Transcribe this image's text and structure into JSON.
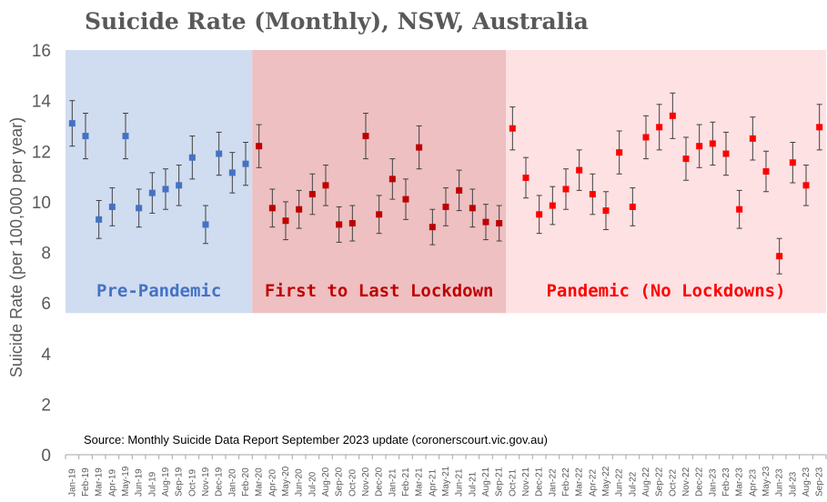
{
  "chart_data": {
    "type": "scatter",
    "title": "Suicide Rate (Monthly), NSW, Australia",
    "ylabel": "Suicide Rate (per 100,000 per year)",
    "xlabel": "",
    "ylim": [
      0,
      16
    ],
    "yticks": [
      "0",
      "2",
      "4",
      "6",
      "8",
      "10",
      "12",
      "14",
      "16"
    ],
    "grid": false,
    "source": "Source: Monthly Suicide Data Report September 2023 update  (coronerscourt.vic.gov.au)",
    "categories": [
      "Jan-19",
      "Feb-19",
      "Mar-19",
      "Apr-19",
      "May-19",
      "Jun-19",
      "Jul-19",
      "Aug-19",
      "Sep-19",
      "Oct-19",
      "Nov-19",
      "Dec-19",
      "Jan-20",
      "Feb-20",
      "Mar-20",
      "Apr-20",
      "May-20",
      "Jun-20",
      "Jul-20",
      "Aug-20",
      "Sep-20",
      "Oct-20",
      "Nov-20",
      "Dec-20",
      "Jan-21",
      "Feb-21",
      "Mar-21",
      "Apr-21",
      "May-21",
      "Jun-21",
      "Jul-21",
      "Aug-21",
      "Sep-21",
      "Oct-21",
      "Nov-21",
      "Dec-21",
      "Jan-22",
      "Feb-22",
      "Mar-22",
      "Apr-22",
      "May-22",
      "Jun-22",
      "Jul-22",
      "Aug-22",
      "Sep-22",
      "Oct-22",
      "Nov-22",
      "Dec-22",
      "Jan-23",
      "Feb-23",
      "Mar-23",
      "Apr-23",
      "May-23",
      "Jun-23",
      "Jul-23",
      "Aug-23",
      "Sep-23"
    ],
    "regions": [
      {
        "label": "Pre-Pandemic",
        "start": "Jan-19",
        "end": "Feb-20",
        "color": "#4472c4",
        "bg": "#d0dcf0"
      },
      {
        "label": "First to Last Lockdown",
        "start": "Mar-20",
        "end": "Sep-21",
        "color": "#c00000",
        "bg": "#eec0c2"
      },
      {
        "label": "Pandemic (No Lockdowns)",
        "start": "Oct-21",
        "end": "Sep-23",
        "color": "#ff0000",
        "bg": "#fde1e3"
      }
    ],
    "series": [
      {
        "color": "#4472c4",
        "values": [
          13.1,
          12.6,
          9.3,
          9.8,
          12.6,
          9.75,
          10.35,
          10.5,
          10.65,
          11.75,
          9.1,
          11.9,
          11.15,
          11.5
        ],
        "err": [
          0.9,
          0.9,
          0.75,
          0.75,
          0.9,
          0.75,
          0.8,
          0.8,
          0.8,
          0.85,
          0.75,
          0.85,
          0.8,
          0.85
        ]
      },
      {
        "color": "#c00000",
        "values": [
          12.2,
          9.75,
          9.25,
          9.7,
          10.3,
          10.65,
          9.1,
          9.15,
          12.6,
          9.5,
          10.9,
          10.1,
          12.15,
          9.0,
          9.8,
          10.45,
          9.75,
          9.2,
          9.15
        ],
        "err": [
          0.85,
          0.75,
          0.75,
          0.75,
          0.8,
          0.8,
          0.7,
          0.7,
          0.9,
          0.75,
          0.8,
          0.8,
          0.85,
          0.7,
          0.75,
          0.8,
          0.75,
          0.7,
          0.7
        ]
      },
      {
        "color": "#ff0000",
        "values": [
          12.9,
          10.95,
          9.5,
          9.85,
          10.5,
          11.25,
          10.3,
          9.65,
          11.95,
          9.8,
          12.55,
          12.95,
          13.4,
          11.7,
          12.2,
          12.3,
          11.9,
          9.7,
          12.5,
          11.2,
          7.85,
          11.55,
          10.65,
          12.95
        ],
        "err": [
          0.85,
          0.8,
          0.75,
          0.75,
          0.8,
          0.8,
          0.8,
          0.75,
          0.85,
          0.75,
          0.85,
          0.9,
          0.9,
          0.85,
          0.85,
          0.85,
          0.85,
          0.75,
          0.85,
          0.8,
          0.7,
          0.8,
          0.8,
          0.9
        ]
      }
    ]
  }
}
